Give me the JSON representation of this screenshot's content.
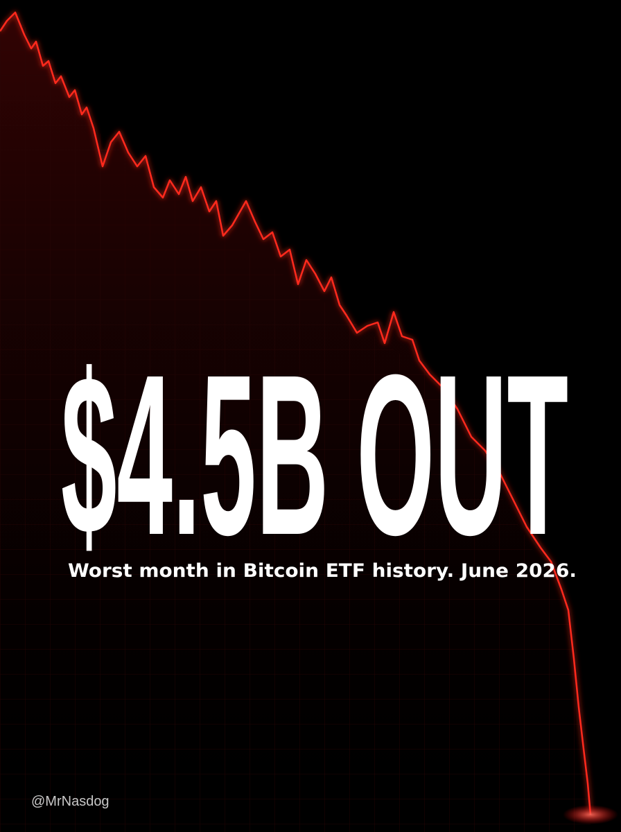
{
  "headline": "$4.5B OUT",
  "subtitle": "Worst month in Bitcoin ETF history. June 2026.",
  "handle": "@MrNasdog"
}
